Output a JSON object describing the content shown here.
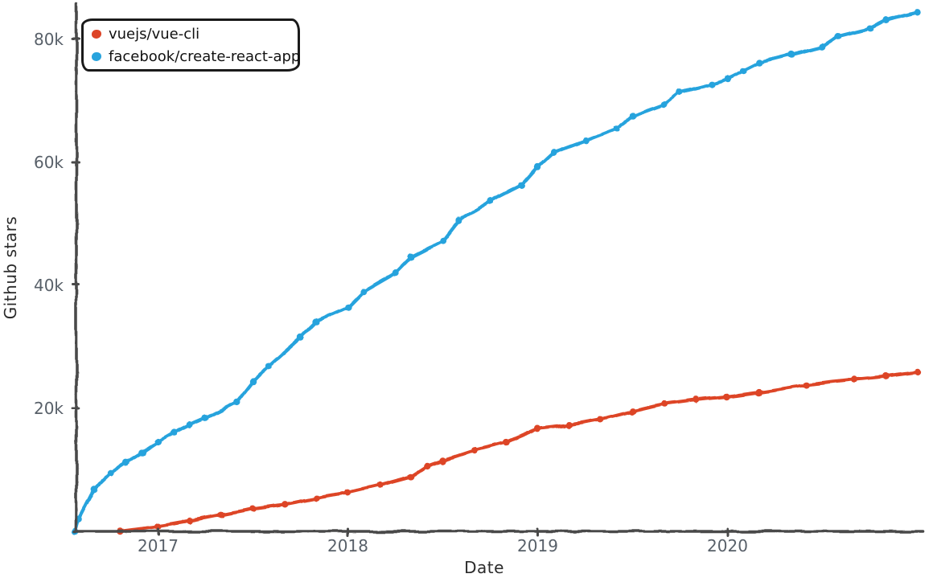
{
  "chart_data": {
    "type": "line",
    "title": "",
    "xlabel": "Date",
    "ylabel": "Github stars",
    "style": "xkcd-hand-drawn",
    "grid": false,
    "legend_position": "top-left",
    "axis_color": "#4a4a4a",
    "tick_text_color": "#586069",
    "label_text_color": "#2b2b2b",
    "x_ticks": [
      "2017",
      "2018",
      "2019",
      "2020"
    ],
    "x_tick_years": [
      2017,
      2018,
      2019,
      2020
    ],
    "y_ticks": [
      "20k",
      "40k",
      "60k",
      "80k"
    ],
    "y_tick_values": [
      20000,
      40000,
      60000,
      80000
    ],
    "xlim": [
      "2016-07",
      "2021-01"
    ],
    "ylim": [
      0,
      86000
    ],
    "series": [
      {
        "name": "vuejs/vue-cli",
        "color": "#dd4528",
        "points": [
          [
            "2016-10-20",
            0
          ],
          [
            "2017-01",
            800
          ],
          [
            "2017-03",
            1700
          ],
          [
            "2017-05",
            2700
          ],
          [
            "2017-07",
            3700
          ],
          [
            "2017-09",
            4400
          ],
          [
            "2017-11",
            5400
          ],
          [
            "2018-01",
            6300
          ],
          [
            "2018-03",
            7500
          ],
          [
            "2018-05",
            8900
          ],
          [
            "2018-06",
            10600
          ],
          [
            "2018-07",
            11500
          ],
          [
            "2018-09",
            13200
          ],
          [
            "2018-11",
            14500
          ],
          [
            "2019-01",
            16700
          ],
          [
            "2019-03",
            17300
          ],
          [
            "2019-05",
            18200
          ],
          [
            "2019-07",
            19500
          ],
          [
            "2019-09",
            20700
          ],
          [
            "2019-11",
            21400
          ],
          [
            "2020-01",
            21900
          ],
          [
            "2020-03",
            22600
          ],
          [
            "2020-06",
            23800
          ],
          [
            "2020-09",
            24700
          ],
          [
            "2020-11",
            25200
          ],
          [
            "2021-01",
            25900
          ]
        ]
      },
      {
        "name": "facebook/create-react-app",
        "color": "#28a3dd",
        "points": [
          [
            "2016-07-25",
            0
          ],
          [
            "2016-08",
            2000
          ],
          [
            "2016-09",
            7000
          ],
          [
            "2016-10",
            9500
          ],
          [
            "2016-11",
            11200
          ],
          [
            "2016-12",
            12800
          ],
          [
            "2017-01",
            14500
          ],
          [
            "2017-02",
            16000
          ],
          [
            "2017-03",
            17300
          ],
          [
            "2017-04",
            18400
          ],
          [
            "2017-06",
            21000
          ],
          [
            "2017-07",
            24300
          ],
          [
            "2017-08",
            26900
          ],
          [
            "2017-10",
            31500
          ],
          [
            "2017-11",
            34100
          ],
          [
            "2018-01",
            36400
          ],
          [
            "2018-02",
            39000
          ],
          [
            "2018-04",
            42000
          ],
          [
            "2018-05",
            44600
          ],
          [
            "2018-07",
            47200
          ],
          [
            "2018-08",
            50500
          ],
          [
            "2018-10",
            53700
          ],
          [
            "2018-12",
            56300
          ],
          [
            "2019-01",
            59200
          ],
          [
            "2019-02",
            61600
          ],
          [
            "2019-04",
            63500
          ],
          [
            "2019-06",
            65500
          ],
          [
            "2019-07",
            67500
          ],
          [
            "2019-09",
            69400
          ],
          [
            "2019-10",
            71400
          ],
          [
            "2019-12",
            72700
          ],
          [
            "2020-01",
            73600
          ],
          [
            "2020-02",
            74900
          ],
          [
            "2020-03",
            76200
          ],
          [
            "2020-05",
            77500
          ],
          [
            "2020-07",
            78800
          ],
          [
            "2020-08",
            80500
          ],
          [
            "2020-10",
            81800
          ],
          [
            "2020-11",
            83100
          ],
          [
            "2021-01",
            84400
          ]
        ]
      }
    ]
  }
}
